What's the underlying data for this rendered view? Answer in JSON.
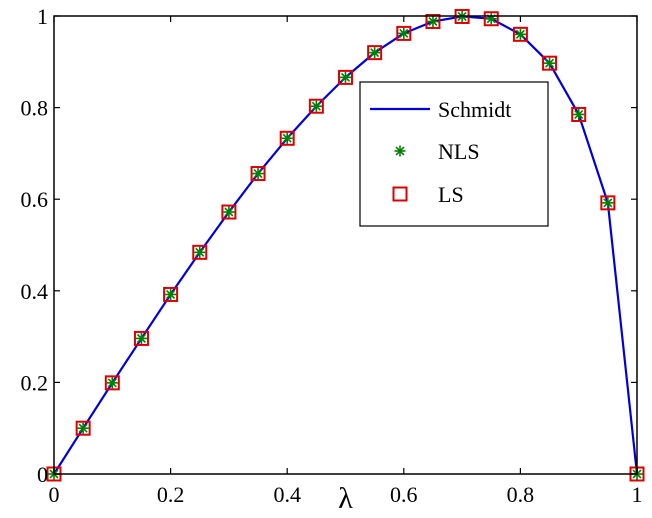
{
  "chart_data": {
    "type": "line",
    "title": "",
    "xlabel": "λ",
    "ylabel": "",
    "xlim": [
      0,
      1
    ],
    "ylim": [
      0,
      1
    ],
    "grid": false,
    "legend_position": "top-right",
    "x_ticks": [
      {
        "value": 0,
        "label": "0"
      },
      {
        "value": 0.2,
        "label": "0.2"
      },
      {
        "value": 0.4,
        "label": "0.4"
      },
      {
        "value": 0.6,
        "label": "0.6"
      },
      {
        "value": 0.8,
        "label": "0.8"
      },
      {
        "value": 1,
        "label": "1"
      }
    ],
    "y_ticks": [
      {
        "value": 0,
        "label": "0"
      },
      {
        "value": 0.2,
        "label": "0.2"
      },
      {
        "value": 0.4,
        "label": "0.4"
      },
      {
        "value": 0.6,
        "label": "0.6"
      },
      {
        "value": 0.8,
        "label": "0.8"
      },
      {
        "value": 1,
        "label": "1"
      }
    ],
    "x": [
      0,
      0.05,
      0.1,
      0.15,
      0.2,
      0.25,
      0.3,
      0.35,
      0.4,
      0.45,
      0.5,
      0.55,
      0.6,
      0.65,
      0.7,
      0.75,
      0.8,
      0.85,
      0.9,
      0.95,
      1.0
    ],
    "series": [
      {
        "name": "Schmidt",
        "style": "line",
        "color": "#0000dd",
        "values": [
          0,
          0.1,
          0.199,
          0.296,
          0.392,
          0.484,
          0.572,
          0.656,
          0.733,
          0.803,
          0.866,
          0.92,
          0.962,
          0.988,
          0.999,
          0.994,
          0.96,
          0.897,
          0.785,
          0.592,
          0
        ]
      },
      {
        "name": "NLS",
        "style": "asterisk",
        "color": "#008000",
        "values": [
          0,
          0.1,
          0.199,
          0.296,
          0.392,
          0.484,
          0.572,
          0.656,
          0.733,
          0.803,
          0.866,
          0.92,
          0.962,
          0.988,
          0.999,
          0.994,
          0.96,
          0.897,
          0.785,
          0.592,
          0
        ]
      },
      {
        "name": "LS",
        "style": "square",
        "color": "#dd0000",
        "values": [
          0,
          0.1,
          0.199,
          0.296,
          0.392,
          0.484,
          0.572,
          0.656,
          0.733,
          0.803,
          0.866,
          0.92,
          0.962,
          0.988,
          0.999,
          0.994,
          0.96,
          0.897,
          0.785,
          0.592,
          0
        ]
      }
    ]
  }
}
